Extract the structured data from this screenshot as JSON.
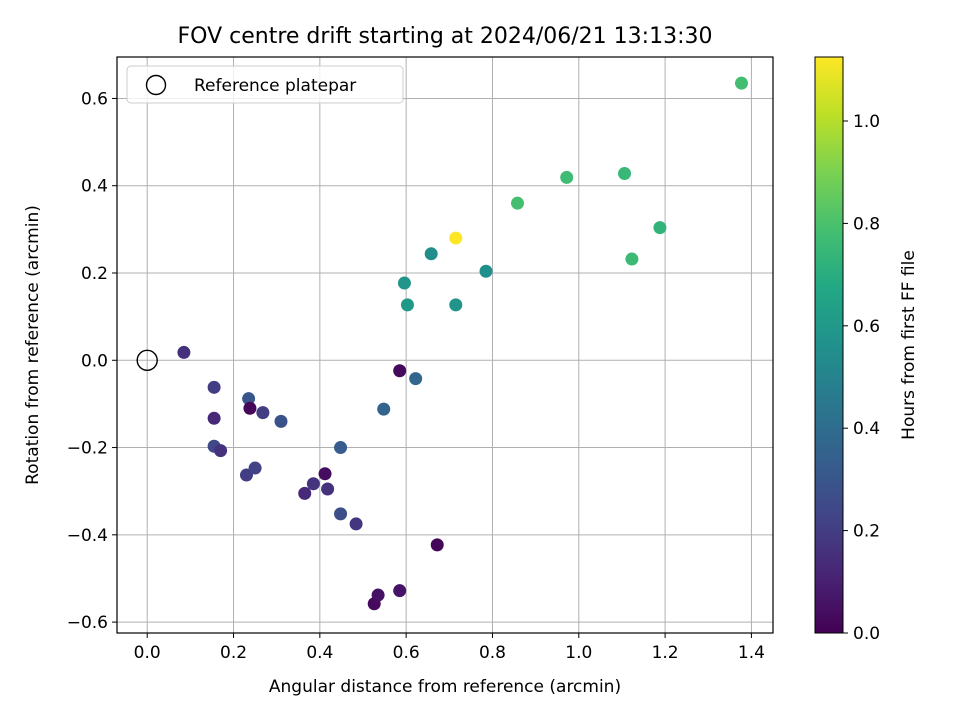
{
  "chart_data": {
    "type": "scatter",
    "title": "FOV centre drift starting at 2024/06/21 13:13:30",
    "xlabel": "Angular distance from reference (arcmin)",
    "ylabel": "Rotation from reference (arcmin)",
    "xlim": [
      -0.07,
      1.45
    ],
    "ylim": [
      -0.625,
      0.695
    ],
    "xticks": [
      0.0,
      0.2,
      0.4,
      0.6,
      0.8,
      1.0,
      1.2,
      1.4
    ],
    "xtick_labels": [
      "0.0",
      "0.2",
      "0.4",
      "0.6",
      "0.8",
      "1.0",
      "1.2",
      "1.4"
    ],
    "yticks": [
      -0.6,
      -0.4,
      -0.2,
      0.0,
      0.2,
      0.4,
      0.6
    ],
    "ytick_labels": [
      "−0.6",
      "−0.4",
      "−0.2",
      "0.0",
      "0.2",
      "0.4",
      "0.6"
    ],
    "grid": true,
    "legend": {
      "placement": "top-left",
      "entries": [
        "Reference platepar"
      ]
    },
    "reference_point": {
      "x": 0.0,
      "y": 0.0
    },
    "colorbar": {
      "label": "Hours from first FF file",
      "range": [
        0.0,
        1.125
      ],
      "ticks": [
        0.0,
        0.2,
        0.4,
        0.6,
        0.8,
        1.0
      ],
      "tick_labels": [
        "0.0",
        "0.2",
        "0.4",
        "0.6",
        "0.8",
        "1.0"
      ],
      "colormap": "viridis"
    },
    "points": [
      {
        "x": 0.085,
        "y": 0.018,
        "c": 0.16
      },
      {
        "x": 0.155,
        "y": -0.062,
        "c": 0.2
      },
      {
        "x": 0.155,
        "y": -0.133,
        "c": 0.13
      },
      {
        "x": 0.155,
        "y": -0.197,
        "c": 0.24
      },
      {
        "x": 0.17,
        "y": -0.207,
        "c": 0.16
      },
      {
        "x": 0.235,
        "y": -0.088,
        "c": 0.3
      },
      {
        "x": 0.238,
        "y": -0.11,
        "c": 0.02
      },
      {
        "x": 0.268,
        "y": -0.12,
        "c": 0.2
      },
      {
        "x": 0.31,
        "y": -0.14,
        "c": 0.28
      },
      {
        "x": 0.23,
        "y": -0.263,
        "c": 0.2
      },
      {
        "x": 0.25,
        "y": -0.247,
        "c": 0.22
      },
      {
        "x": 0.365,
        "y": -0.305,
        "c": 0.13
      },
      {
        "x": 0.385,
        "y": -0.283,
        "c": 0.17
      },
      {
        "x": 0.412,
        "y": -0.26,
        "c": 0.04
      },
      {
        "x": 0.418,
        "y": -0.295,
        "c": 0.16
      },
      {
        "x": 0.448,
        "y": -0.352,
        "c": 0.27
      },
      {
        "x": 0.448,
        "y": -0.2,
        "c": 0.33
      },
      {
        "x": 0.484,
        "y": -0.375,
        "c": 0.18
      },
      {
        "x": 0.526,
        "y": -0.558,
        "c": 0.03
      },
      {
        "x": 0.535,
        "y": -0.538,
        "c": 0.05
      },
      {
        "x": 0.585,
        "y": -0.528,
        "c": 0.06
      },
      {
        "x": 0.585,
        "y": -0.024,
        "c": 0.03
      },
      {
        "x": 0.548,
        "y": -0.112,
        "c": 0.36
      },
      {
        "x": 0.622,
        "y": -0.042,
        "c": 0.37
      },
      {
        "x": 0.672,
        "y": -0.423,
        "c": 0.02
      },
      {
        "x": 0.596,
        "y": 0.177,
        "c": 0.58
      },
      {
        "x": 0.603,
        "y": 0.127,
        "c": 0.6
      },
      {
        "x": 0.658,
        "y": 0.244,
        "c": 0.55
      },
      {
        "x": 0.715,
        "y": 0.127,
        "c": 0.58
      },
      {
        "x": 0.715,
        "y": 0.28,
        "c": 1.125
      },
      {
        "x": 0.785,
        "y": 0.204,
        "c": 0.56
      },
      {
        "x": 0.858,
        "y": 0.36,
        "c": 0.79
      },
      {
        "x": 0.972,
        "y": 0.419,
        "c": 0.77
      },
      {
        "x": 1.106,
        "y": 0.428,
        "c": 0.75
      },
      {
        "x": 1.123,
        "y": 0.232,
        "c": 0.76
      },
      {
        "x": 1.188,
        "y": 0.304,
        "c": 0.73
      },
      {
        "x": 1.377,
        "y": 0.635,
        "c": 0.78
      }
    ]
  }
}
